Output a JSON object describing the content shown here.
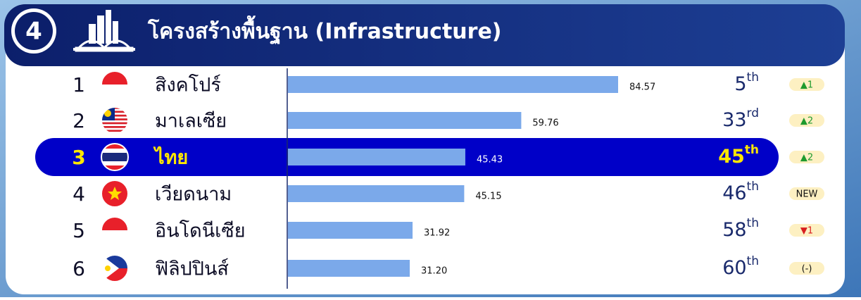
{
  "header": {
    "number": "4",
    "title": "โครงสร้างพื้นฐาน (Infrastructure)"
  },
  "chart_data": {
    "type": "bar",
    "orientation": "horizontal",
    "color": "#7ba9ea",
    "highlight_color": "#0000c8",
    "positions": [
      1,
      2,
      3,
      4,
      5,
      6
    ],
    "categories": [
      "สิงคโปร์",
      "มาเลเซีย",
      "ไทย",
      "เวียดนาม",
      "อินโดนีเซีย",
      "ฟิลิปปินส์"
    ],
    "values": [
      84.57,
      59.76,
      45.43,
      45.15,
      31.92,
      31.2
    ],
    "value_labels": [
      "84.57",
      "59.76",
      "45.43",
      "45.15",
      "31.92",
      "31.20"
    ],
    "world_ranks": [
      5,
      33,
      45,
      46,
      58,
      60
    ],
    "rank_suffixes": [
      "th",
      "rd",
      "th",
      "th",
      "th",
      "th"
    ],
    "changes": [
      "▲1",
      "▲2",
      "▲2",
      "NEW",
      "▼1",
      "(-)"
    ],
    "highlight_index": 2
  }
}
